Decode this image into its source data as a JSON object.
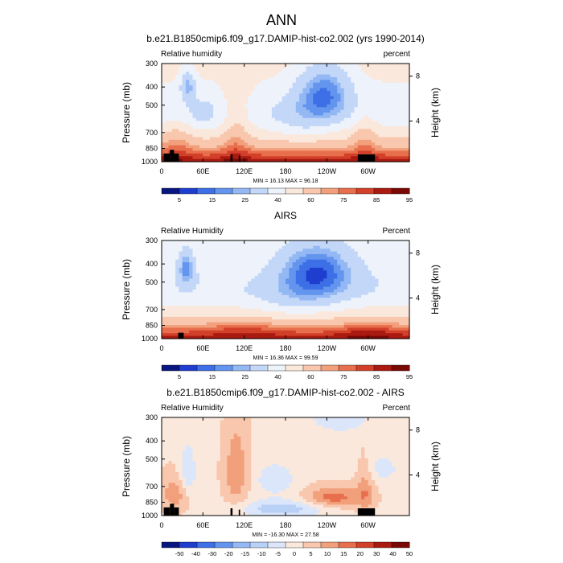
{
  "figure": {
    "title": "ANN"
  },
  "colors": {
    "frame": "#000000",
    "terrain": "#000000",
    "scale_humidity": [
      "#0a1680",
      "#1f3ecf",
      "#3d6fe6",
      "#6495ee",
      "#93b8f4",
      "#c3d7f8",
      "#eef3fb",
      "#fbe8dc",
      "#f8c7ad",
      "#f2a07c",
      "#e86f4d",
      "#d2402a",
      "#aa1a10",
      "#7a0906"
    ],
    "scale_difference": [
      "#0a1680",
      "#1f3ecf",
      "#3d6fe6",
      "#6495ee",
      "#93b8f4",
      "#b9d0f7",
      "#dbe6fa",
      "#fbe8dc",
      "#f8c7ad",
      "#f2a07c",
      "#e86f4d",
      "#d2402a",
      "#aa1a10",
      "#7a0906"
    ]
  },
  "chart_data": [
    {
      "type": "heatmap",
      "name": "model",
      "title": "b.e21.B1850cmip6.f09_g17.DAMIP-hist-co2.002 (yrs 1990-2014)",
      "left_label": "Relative humidity",
      "right_label": "percent",
      "ylabel": "Pressure (mb)",
      "y2label": "Height (km)",
      "xticks": [
        {
          "lon": 0,
          "label": "0"
        },
        {
          "lon": 60,
          "label": "60E"
        },
        {
          "lon": 120,
          "label": "120E"
        },
        {
          "lon": 180,
          "label": "180"
        },
        {
          "lon": 240,
          "label": "120W"
        },
        {
          "lon": 300,
          "label": "60W"
        }
      ],
      "yticks": [
        {
          "p": 300,
          "label": "300"
        },
        {
          "p": 400,
          "label": "400"
        },
        {
          "p": 500,
          "label": "500"
        },
        {
          "p": 700,
          "label": "700"
        },
        {
          "p": 850,
          "label": "850"
        },
        {
          "p": 1000,
          "label": "1000"
        }
      ],
      "y2ticks": [
        {
          "km": 8,
          "label": "8"
        },
        {
          "km": 4,
          "label": "4"
        }
      ],
      "xlim": [
        0,
        360
      ],
      "ylim": [
        300,
        1000
      ],
      "stats": "MIN = 16.13  MAX = 96.18",
      "min": 16.13,
      "max": 96.18,
      "colorbar_labels": [
        "5",
        "15",
        "25",
        "40",
        "60",
        "75",
        "85",
        "95"
      ],
      "levels": [
        5,
        10,
        15,
        20,
        25,
        30,
        40,
        50,
        60,
        70,
        75,
        80,
        85,
        90,
        95
      ]
    },
    {
      "type": "heatmap",
      "name": "obs",
      "title": "AIRS",
      "left_label": "Relative Humidity",
      "right_label": "Percent",
      "ylabel": "Pressure (mb)",
      "y2label": "Height (km)",
      "xticks": [
        {
          "lon": 0,
          "label": "0"
        },
        {
          "lon": 60,
          "label": "60E"
        },
        {
          "lon": 120,
          "label": "120E"
        },
        {
          "lon": 180,
          "label": "180"
        },
        {
          "lon": 240,
          "label": "120W"
        },
        {
          "lon": 300,
          "label": "60W"
        }
      ],
      "yticks": [
        {
          "p": 300,
          "label": "300"
        },
        {
          "p": 400,
          "label": "400"
        },
        {
          "p": 500,
          "label": "500"
        },
        {
          "p": 700,
          "label": "700"
        },
        {
          "p": 850,
          "label": "850"
        },
        {
          "p": 1000,
          "label": "1000"
        }
      ],
      "y2ticks": [
        {
          "km": 8,
          "label": "8"
        },
        {
          "km": 4,
          "label": "4"
        }
      ],
      "xlim": [
        0,
        360
      ],
      "ylim": [
        300,
        1000
      ],
      "stats": "MIN = 16.36  MAX = 99.59",
      "min": 16.36,
      "max": 99.59,
      "colorbar_labels": [
        "5",
        "15",
        "25",
        "40",
        "60",
        "75",
        "85",
        "95"
      ],
      "levels": [
        5,
        10,
        15,
        20,
        25,
        30,
        40,
        50,
        60,
        70,
        75,
        80,
        85,
        90,
        95
      ]
    },
    {
      "type": "heatmap",
      "name": "diff",
      "title": "b.e21.B1850cmip6.f09_g17.DAMIP-hist-co2.002 - AIRS",
      "left_label": "Relative Humidity",
      "right_label": "Percent",
      "ylabel": "Pressure (mb)",
      "y2label": "Height (km)",
      "xticks": [
        {
          "lon": 0,
          "label": "0"
        },
        {
          "lon": 60,
          "label": "60E"
        },
        {
          "lon": 120,
          "label": "120E"
        },
        {
          "lon": 180,
          "label": "180"
        },
        {
          "lon": 240,
          "label": "120W"
        },
        {
          "lon": 300,
          "label": "60W"
        }
      ],
      "yticks": [
        {
          "p": 300,
          "label": "300"
        },
        {
          "p": 400,
          "label": "400"
        },
        {
          "p": 500,
          "label": "500"
        },
        {
          "p": 700,
          "label": "700"
        },
        {
          "p": 850,
          "label": "850"
        },
        {
          "p": 1000,
          "label": "1000"
        }
      ],
      "y2ticks": [
        {
          "km": 8,
          "label": "8"
        },
        {
          "km": 4,
          "label": "4"
        }
      ],
      "xlim": [
        0,
        360
      ],
      "ylim": [
        300,
        1000
      ],
      "stats": "MIN = -16.30  MAX = 27.58",
      "min": -16.3,
      "max": 27.58,
      "colorbar_labels": [
        "-50",
        "-40",
        "-30",
        "-20",
        "-15",
        "-10",
        "-5",
        "0",
        "5",
        "10",
        "15",
        "20",
        "30",
        "40",
        "50"
      ],
      "levels": [
        -50,
        -40,
        -30,
        -20,
        -15,
        -10,
        -5,
        0,
        5,
        10,
        15,
        20,
        30,
        40,
        50
      ]
    }
  ]
}
